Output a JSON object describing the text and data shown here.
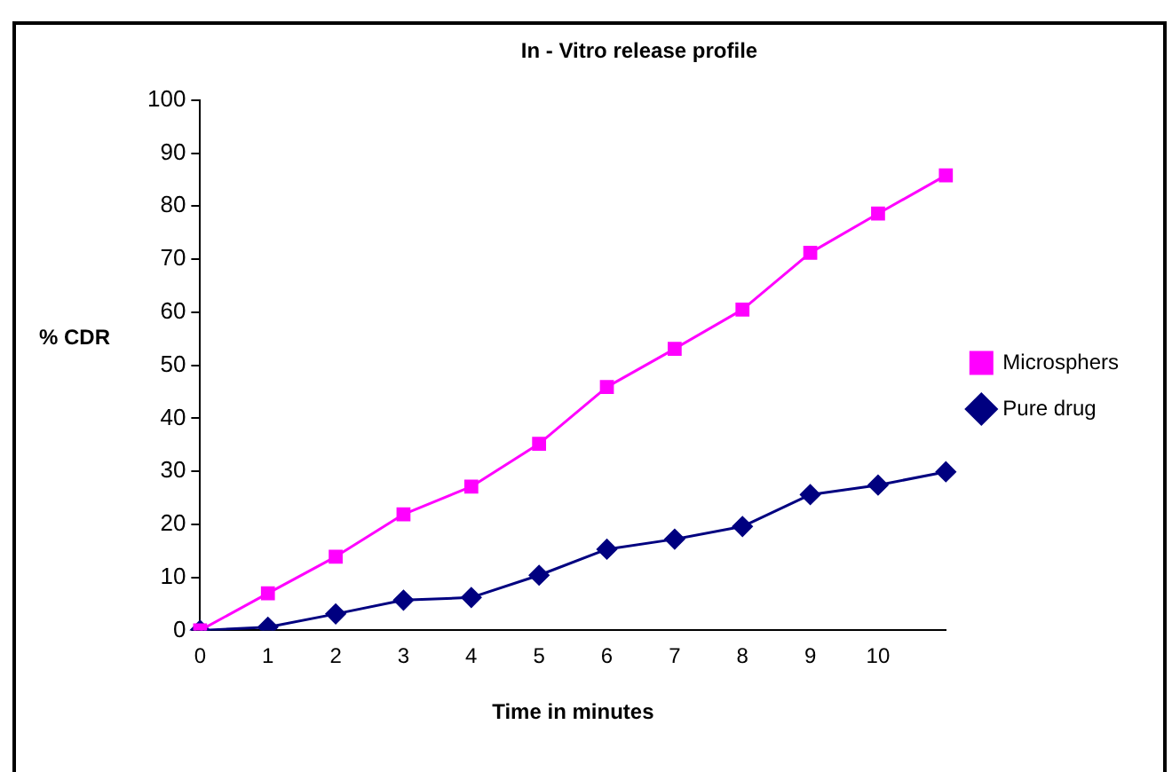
{
  "chart_data": {
    "type": "line",
    "title": "In - Vitro release profile",
    "xlabel": "Time in minutes",
    "ylabel": "% CDR",
    "categories": [
      "0",
      "1",
      "2",
      "3",
      "4",
      "5",
      "6",
      "7",
      "8",
      "9",
      "10",
      null
    ],
    "ylim": [
      0,
      100
    ],
    "yticks": [
      0,
      10,
      20,
      30,
      40,
      50,
      60,
      70,
      80,
      90,
      100
    ],
    "grid": false,
    "legend": "right",
    "series": [
      {
        "name": "Microsphers",
        "color": "#ff00ff",
        "marker": "square",
        "values": [
          0,
          7,
          13.9,
          21.9,
          27.1,
          35.2,
          45.9,
          53.1,
          60.5,
          71.2,
          78.6,
          85.8
        ]
      },
      {
        "name": "Pure drug",
        "color": "#000080",
        "marker": "diamond",
        "values": [
          0,
          0.6,
          3.1,
          5.7,
          6.2,
          10.4,
          15.3,
          17.2,
          19.6,
          25.6,
          27.4,
          29.9
        ]
      }
    ]
  }
}
